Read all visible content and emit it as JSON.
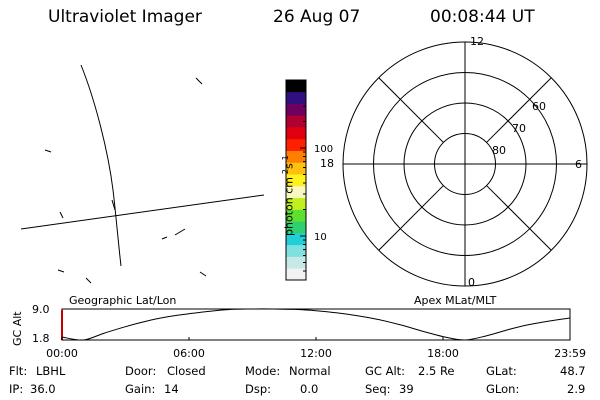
{
  "header": {
    "instrument": "Ultraviolet Imager",
    "date": "26 Aug 07",
    "time": "00:08:44 UT"
  },
  "colorbar": {
    "unit_label": "photon cm",
    "unit_exp1": "-2",
    "unit_s": "s",
    "unit_exp2": "-1",
    "ticks": [
      {
        "label": "100",
        "value": 100
      },
      {
        "label": "10",
        "value": 10
      }
    ],
    "colors": [
      "#f2f2f2",
      "#c8e8e8",
      "#7fe0e0",
      "#20d0d8",
      "#30d070",
      "#5ee030",
      "#c0f020",
      "#f8f8c0",
      "#fff020",
      "#ffc010",
      "#ff8000",
      "#ff2000",
      "#e00010",
      "#b00030",
      "#700060",
      "#301080",
      "#000000"
    ]
  },
  "polar": {
    "mlt_labels": [
      {
        "label": "12",
        "angle": 0
      },
      {
        "label": "6",
        "angle": 90
      },
      {
        "label": "0",
        "angle": 180
      },
      {
        "label": "18",
        "angle": 270
      }
    ],
    "lat_labels": [
      "60",
      "70",
      "80"
    ]
  },
  "panel_labels": {
    "left": "Geographic Lat/Lon",
    "right": "Apex MLat/MLT"
  },
  "chart_data": {
    "type": "line",
    "title": "",
    "xlabel": "",
    "ylabel": "GC Alt",
    "xlim": [
      "00:00",
      "23:59"
    ],
    "ylim": [
      1.8,
      9.0
    ],
    "xticks": [
      "00:00",
      "06:00",
      "12:00",
      "18:00",
      "23:59"
    ],
    "yticks": [
      "9.0",
      "1.8"
    ],
    "x_hours": [
      0,
      1,
      2,
      3,
      4,
      5,
      6,
      7,
      8,
      9,
      10,
      11,
      12,
      13,
      14,
      15,
      16,
      17,
      18,
      19,
      20,
      21,
      22,
      23,
      24
    ],
    "series": [
      {
        "values": [
          2.5,
          1.8,
          3.4,
          4.9,
          6.2,
          7.2,
          7.9,
          8.5,
          8.9,
          9.0,
          9.0,
          8.9,
          8.6,
          8.1,
          7.4,
          6.5,
          5.3,
          3.9,
          2.6,
          1.8,
          2.7,
          4.1,
          5.3,
          6.2,
          6.9
        ]
      }
    ]
  },
  "status": {
    "flt_label": "Flt:",
    "flt_value": "LBHL",
    "ip_label": "IP:",
    "ip_value": "36.0",
    "door_label": "Door:",
    "door_value": "Closed",
    "gain_label": "Gain:",
    "gain_value": "14",
    "mode_label": "Mode:",
    "mode_value": "Normal",
    "dsp_label": "Dsp:",
    "dsp_value": "0.0",
    "gcalt_label": "GC Alt:",
    "gcalt_value": "2.5 Re",
    "seq_label": "Seq:",
    "seq_value": "39",
    "glat_label": "GLat:",
    "glat_value": "48.7",
    "glon_label": "GLon:",
    "glon_value": "2.9"
  }
}
